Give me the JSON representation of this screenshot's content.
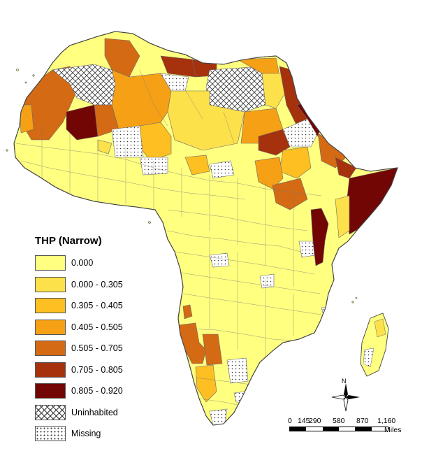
{
  "legend": {
    "title": "THP (Narrow)",
    "items": [
      {
        "label": "0.000",
        "color": "#ffff80",
        "pattern": "none"
      },
      {
        "label": "0.000 - 0.305",
        "color": "#fde14a",
        "pattern": "none"
      },
      {
        "label": "0.305 - 0.405",
        "color": "#fdbf22",
        "pattern": "none"
      },
      {
        "label": "0.405 - 0.505",
        "color": "#f6a016",
        "pattern": "none"
      },
      {
        "label": "0.505 - 0.705",
        "color": "#d46a14",
        "pattern": "none"
      },
      {
        "label": "0.705 - 0.805",
        "color": "#a5320d",
        "pattern": "none"
      },
      {
        "label": "0.805 - 0.920",
        "color": "#720605",
        "pattern": "none"
      },
      {
        "label": "Uninhabited",
        "color": "#ffffff",
        "pattern": "crosshatch"
      },
      {
        "label": "Missing",
        "color": "#ffffff",
        "pattern": "dots"
      }
    ]
  },
  "scale": {
    "ticks": [
      "0",
      "145",
      "290",
      "580",
      "870",
      "1,160"
    ],
    "unit": "Miles"
  },
  "north_arrow": {
    "label": "N"
  }
}
